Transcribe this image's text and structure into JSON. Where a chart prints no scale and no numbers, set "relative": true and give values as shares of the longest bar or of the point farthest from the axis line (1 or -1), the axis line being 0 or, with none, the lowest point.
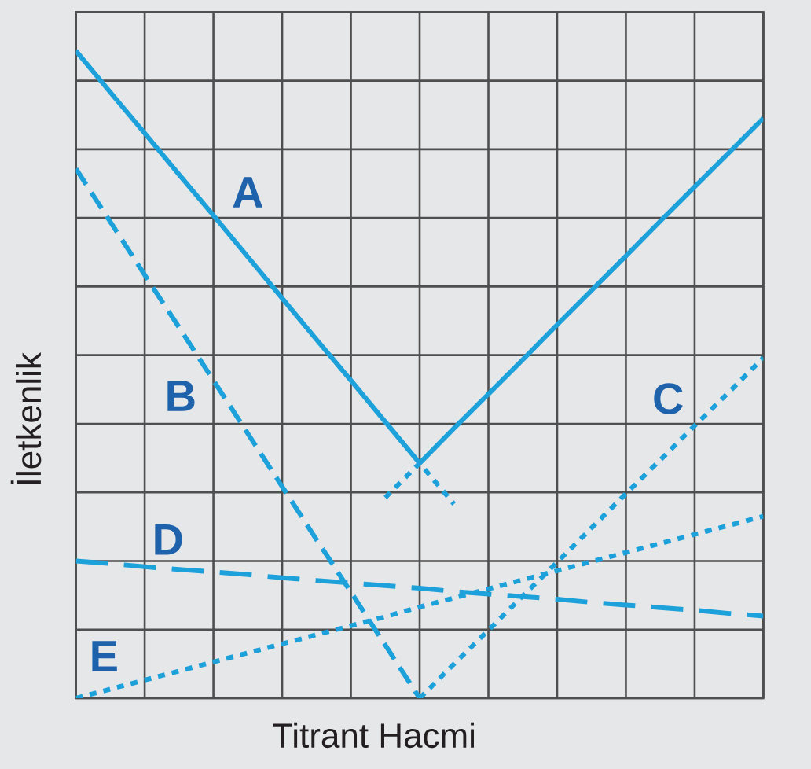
{
  "chart_data": {
    "type": "line",
    "xlabel": "Titrant Hacmi",
    "ylabel": "İletkenlik",
    "relative": true,
    "grid": true,
    "categories": [
      null,
      null,
      null,
      null,
      null,
      null,
      null,
      null,
      null,
      null,
      null,
      null,
      null,
      null,
      null,
      null,
      null,
      null,
      null,
      null,
      null
    ],
    "series": [
      {
        "name": "A",
        "color": "#1da1db",
        "line_style": "solid",
        "values": [
          1.0,
          0.936,
          0.873,
          0.809,
          0.746,
          0.682,
          0.618,
          0.554,
          0.491,
          0.427,
          0.363,
          0.417,
          0.47,
          0.523,
          0.577,
          0.63,
          0.683,
          0.737,
          0.79,
          0.843,
          0.896
        ]
      },
      {
        "name": "B",
        "color": "#1da1db",
        "line_style": "dashed",
        "values": [
          0.818,
          0.736,
          0.654,
          0.573,
          0.491,
          0.409,
          0.327,
          0.245,
          0.164,
          0.082,
          0,
          null,
          null,
          null,
          null,
          null,
          null,
          null,
          null,
          null,
          null
        ]
      },
      {
        "name": "C",
        "color": "#1da1db",
        "line_style": "dotted",
        "values": [
          null,
          null,
          null,
          null,
          null,
          null,
          null,
          null,
          null,
          null,
          0,
          0.053,
          0.105,
          0.158,
          0.21,
          0.263,
          0.316,
          0.368,
          0.421,
          0.473,
          0.526
        ]
      },
      {
        "name": "D",
        "color": "#1da1db",
        "line_style": "dashed",
        "values": [
          0.212,
          0.208,
          0.203,
          0.199,
          0.195,
          0.191,
          0.186,
          0.182,
          0.178,
          0.174,
          0.17,
          0.165,
          0.161,
          0.157,
          0.153,
          0.148,
          0.144,
          0.14,
          0.136,
          0.131,
          0.127
        ]
      },
      {
        "name": "E",
        "color": "#1da1db",
        "line_style": "dotted",
        "values": [
          0,
          0.014,
          0.028,
          0.042,
          0.056,
          0.07,
          0.084,
          0.098,
          0.112,
          0.126,
          0.141,
          0.155,
          0.169,
          0.183,
          0.197,
          0.211,
          0.225,
          0.239,
          0.253,
          0.267,
          0.281
        ]
      },
      {
        "color": "#1da1db",
        "line_style": "dotted",
        "values": [
          null,
          null,
          null,
          null,
          null,
          null,
          null,
          null,
          null,
          0.31,
          0.363,
          0.3,
          null,
          null,
          null,
          null,
          null,
          null,
          null,
          null,
          null
        ]
      }
    ]
  }
}
